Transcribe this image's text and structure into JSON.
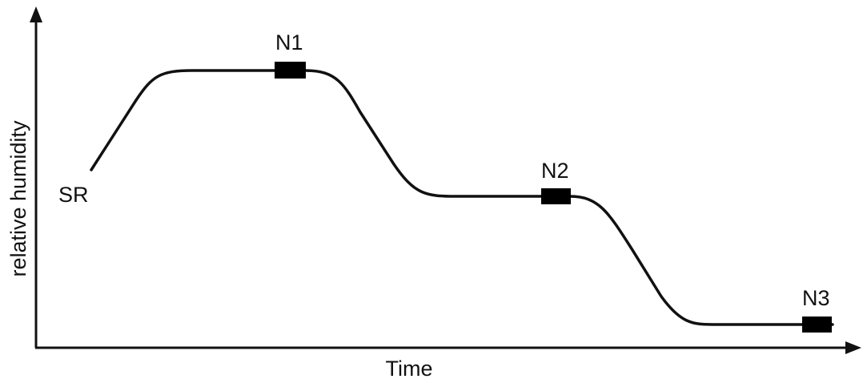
{
  "diagram": {
    "y_axis_label": "relative humidity",
    "x_axis_label": "Time",
    "start_label": "SR",
    "stages": [
      {
        "label": "N1"
      },
      {
        "label": "N2"
      },
      {
        "label": "N3"
      }
    ]
  }
}
